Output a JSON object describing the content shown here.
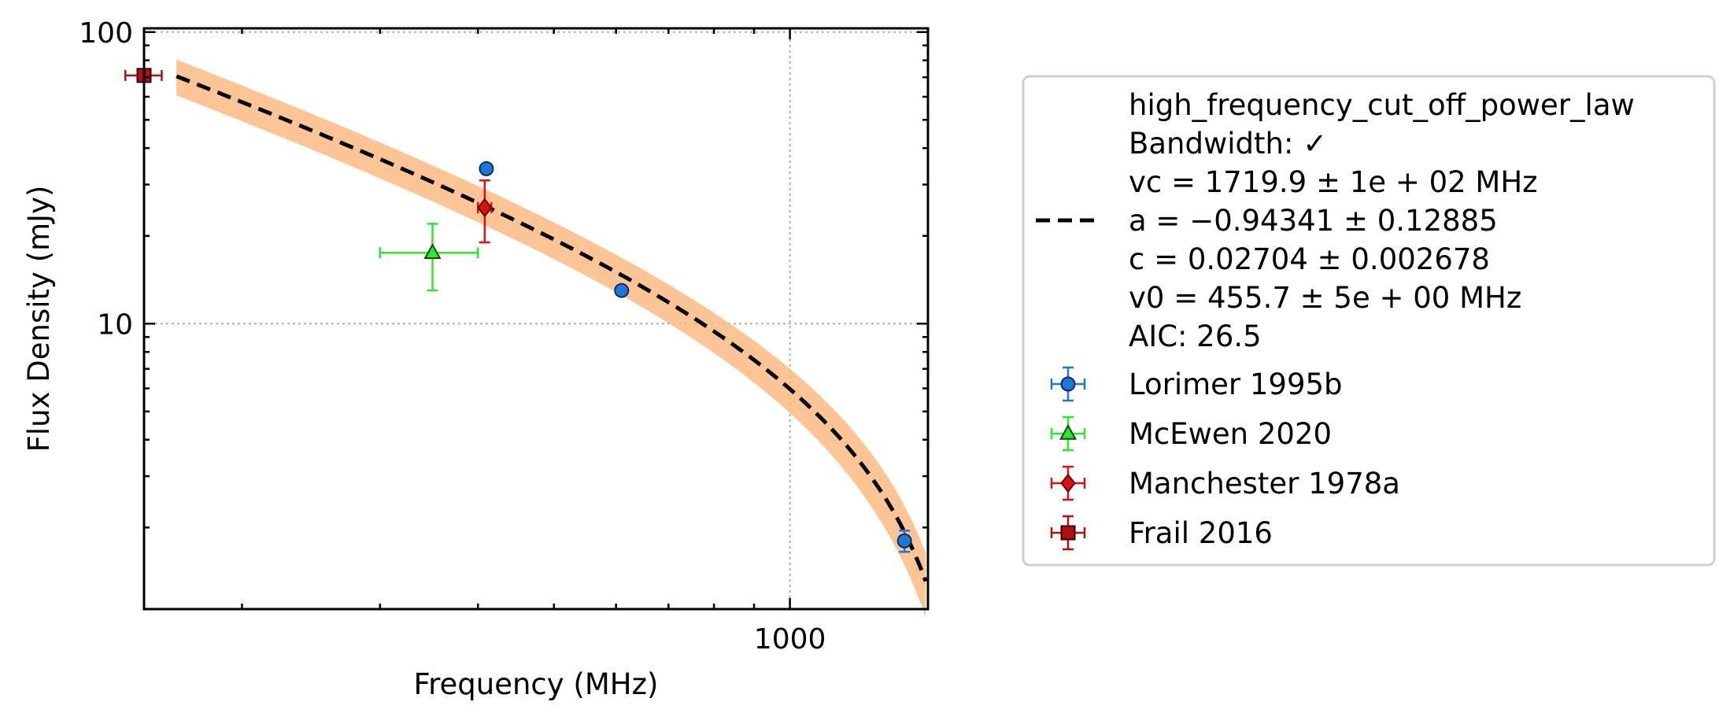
{
  "chart_data": {
    "type": "scatter",
    "xlabel": "Frequency (MHz)",
    "ylabel": "Flux Density (mJy)",
    "x_scale": "log",
    "y_scale": "log",
    "xlim": [
      150,
      1500
    ],
    "ylim": [
      1.05,
      103
    ],
    "x_ticks": [
      {
        "value": 1000,
        "label": "1000"
      }
    ],
    "y_ticks": [
      {
        "value": 10,
        "label": "10"
      },
      {
        "value": 100,
        "label": "100"
      }
    ],
    "grid": true,
    "legend_position": "outside-right",
    "fit": {
      "label_lines": [
        "high_frequency_cut_off_power_law",
        "Bandwidth: ✓",
        "vc = 1719.9 ± 1e + 02 MHz",
        "a = −0.94341 ± 0.12885",
        "c = 0.02704 ± 0.002678",
        "v0 = 455.7 ± 5e + 00 MHz",
        "AIC: 26.5"
      ],
      "color": "#000000",
      "band_color": "#fdbb84",
      "vc": 1719.9,
      "a": -0.94341,
      "c": 0.02704,
      "v0": 455.7,
      "x_range": [
        165,
        1490
      ],
      "uncertainty_fraction": 0.14
    },
    "series": [
      {
        "name": "Lorimer 1995b",
        "marker": "circle",
        "color": "#1f77d4",
        "edge": "#0d2a66",
        "points": [
          {
            "x": 410,
            "y": 34.0,
            "xerr": 0,
            "yerr": 1.0
          },
          {
            "x": 610,
            "y": 13.0,
            "xerr": 0,
            "yerr": 0.4
          },
          {
            "x": 1400,
            "y": 1.8,
            "xerr": 0,
            "yerr": 0.15
          }
        ]
      },
      {
        "name": "McEwen 2020",
        "marker": "triangle",
        "color": "#2ee62e",
        "edge": "#0a4a0a",
        "points": [
          {
            "x": 350,
            "y": 17.5,
            "xerr": 50,
            "yerr": 4.5
          }
        ]
      },
      {
        "name": "Manchester 1978a",
        "marker": "diamond",
        "color": "#e01010",
        "edge": "#5a0000",
        "points": [
          {
            "x": 408,
            "y": 25.0,
            "xerr": 8,
            "yerr": 6.0
          }
        ]
      },
      {
        "name": "Frail 2016",
        "marker": "square",
        "color": "#b01010",
        "edge": "#3a0000",
        "points": [
          {
            "x": 150,
            "y": 71.0,
            "xerr": 8,
            "yerr": 3.0
          }
        ]
      }
    ]
  }
}
